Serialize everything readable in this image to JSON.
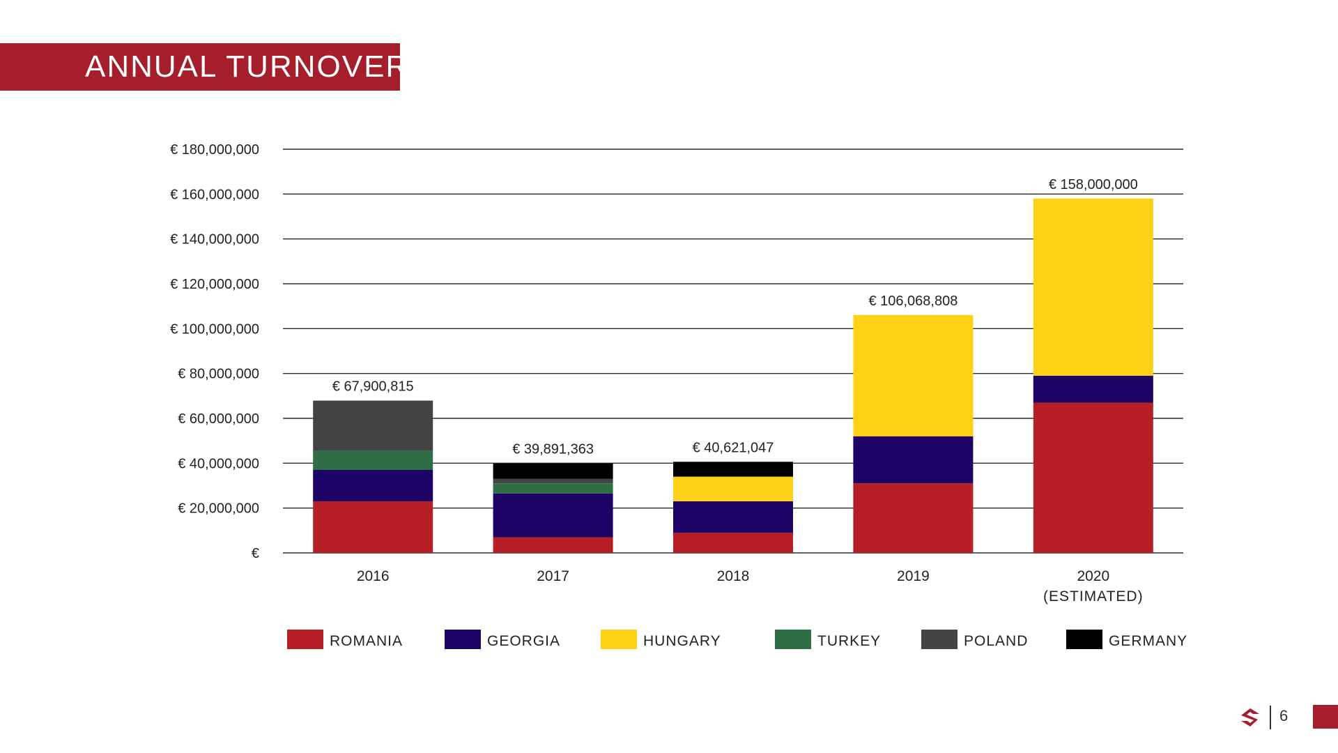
{
  "slide": {
    "title": "ANNUAL TURNOVER",
    "page_number": "6",
    "brand_color": "#a41e2b"
  },
  "chart_data": {
    "type": "bar",
    "stacked": true,
    "title": "ANNUAL TURNOVER",
    "xlabel": "",
    "ylabel": "",
    "grid": true,
    "ylim": [
      0,
      180000000
    ],
    "yticks": [
      0,
      20000000,
      40000000,
      60000000,
      80000000,
      100000000,
      120000000,
      140000000,
      160000000,
      180000000
    ],
    "ytick_labels": [
      "€",
      "€ 20,000,000",
      "€ 40,000,000",
      "€ 60,000,000",
      "€ 80,000,000",
      "€ 100,000,000",
      "€ 120,000,000",
      "€ 140,000,000",
      "€ 160,000,000",
      "€ 180,000,000"
    ],
    "categories": [
      [
        "2016"
      ],
      [
        "2017"
      ],
      [
        "2018"
      ],
      [
        "2019"
      ],
      [
        "2020",
        "(ESTIMATED)"
      ]
    ],
    "totals_labels": [
      "€ 67,900,815",
      "€ 39,891,363",
      "€ 40,621,047",
      "€ 106,068,808",
      "€ 158,000,000"
    ],
    "series": [
      {
        "name": "ROMANIA",
        "color": "#b71f27",
        "values": [
          23000000,
          7000000,
          9000000,
          31000000,
          67000000
        ]
      },
      {
        "name": "GEORGIA",
        "color": "#1e0366",
        "values": [
          14000000,
          19500000,
          14000000,
          21000000,
          12000000
        ]
      },
      {
        "name": "HUNGARY",
        "color": "#fcd116",
        "values": [
          0,
          0,
          11000000,
          54068808,
          79000000
        ]
      },
      {
        "name": "TURKEY",
        "color": "#2f6e45",
        "values": [
          8500000,
          4500000,
          0,
          0,
          0
        ]
      },
      {
        "name": "POLAND",
        "color": "#434343",
        "values": [
          22400815,
          2000000,
          0,
          0,
          0
        ]
      },
      {
        "name": "GERMANY",
        "color": "#000000",
        "values": [
          0,
          6891363,
          6621047,
          0,
          0
        ]
      }
    ],
    "legend_position": "bottom"
  }
}
